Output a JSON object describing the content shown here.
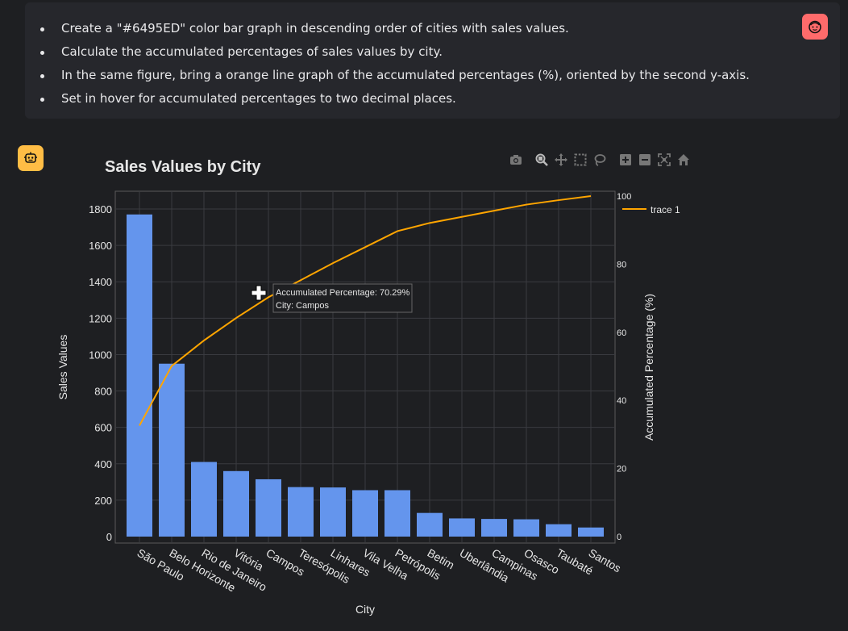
{
  "user_message": {
    "bullets": [
      "Create a \"#6495ED\" color bar graph in descending order of cities with sales values.",
      "Calculate the accumulated percentages of sales values by city.",
      "In the same figure, bring a orange line graph of the accumulated percentages (%), oriented by the second y-axis.",
      "Set in hover for accumulated percentages to two decimal places."
    ]
  },
  "icons": {
    "user_avatar": "face-icon",
    "bot_avatar": "robot-icon",
    "modebar": [
      "camera-icon",
      "zoom-icon",
      "pan-icon",
      "box-select-icon",
      "lasso-icon",
      "zoom-in-icon",
      "zoom-out-icon",
      "autoscale-icon",
      "home-icon"
    ]
  },
  "colors": {
    "bar": "#6495ED",
    "line": "orange",
    "user_avatar": "#ff6b6b",
    "bot_avatar": "#ffbd45"
  },
  "tooltip": {
    "line1": "Accumulated Percentage: 70.29%",
    "line2": "City: Campos"
  },
  "chart_data": {
    "type": "bar",
    "title": "Sales Values by City",
    "xlabel": "City",
    "ylabel": "Sales Values",
    "y2label": "Accumulated Percentage (%)",
    "ylim": [
      0,
      1920
    ],
    "y2lim": [
      0,
      100
    ],
    "yticks": [
      0,
      200,
      400,
      600,
      800,
      1000,
      1200,
      1400,
      1600,
      1800
    ],
    "y2ticks": [
      0,
      20,
      40,
      60,
      80,
      100
    ],
    "grid": true,
    "legend_position": "top-right",
    "categories": [
      "São Paulo",
      "Belo Horizonte",
      "Rio de Janeiro",
      "Vitória",
      "Campos",
      "Teresópolis",
      "Linhares",
      "Vila Velha",
      "Petrópolis",
      "Betim",
      "Uberlândia",
      "Campinas",
      "Osasco",
      "Taubaté",
      "Santos"
    ],
    "series": [
      {
        "type": "bar",
        "values": [
          1770,
          950,
          410,
          360,
          315,
          272,
          270,
          255,
          255,
          130,
          100,
          97,
          95,
          68,
          50
        ]
      },
      {
        "type": "line",
        "name": "trace 1",
        "axis": "y2",
        "values": [
          32.6,
          50.1,
          57.6,
          64.2,
          70.29,
          75.3,
          80.3,
          85.0,
          89.7,
          92.1,
          93.9,
          95.7,
          97.5,
          98.8,
          100
        ]
      }
    ]
  }
}
